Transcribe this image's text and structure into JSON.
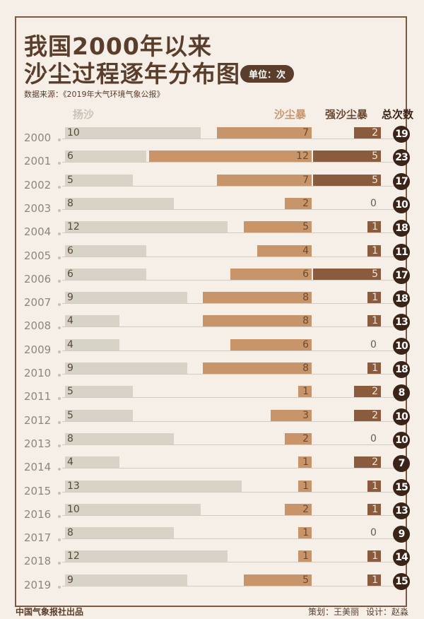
{
  "title_line1": "我国2000年以来",
  "title_line2": "沙尘过程逐年分布图",
  "unit": "单位：次",
  "source": "数据来源：《2019年大气环境气象公报》",
  "footer_left": "中国气象报社出品",
  "footer_right": "策划：王美丽  设计：赵淼",
  "colors": {
    "yangsha": "#d7d3c7",
    "dust_storm": "#c8956b",
    "strong_dust_storm": "#8a5b3d",
    "total": "#3a2317"
  },
  "chart_data": {
    "type": "bar",
    "categories": [
      "2000",
      "2001",
      "2002",
      "2003",
      "2004",
      "2005",
      "2006",
      "2007",
      "2008",
      "2009",
      "2010",
      "2011",
      "2012",
      "2013",
      "2014",
      "2015",
      "2016",
      "2017",
      "2018",
      "2019"
    ],
    "series": [
      {
        "name": "扬沙",
        "values": [
          10,
          6,
          5,
          8,
          12,
          6,
          6,
          9,
          4,
          4,
          9,
          5,
          5,
          8,
          4,
          13,
          10,
          8,
          12,
          9
        ]
      },
      {
        "name": "沙尘暴",
        "values": [
          7,
          12,
          7,
          2,
          5,
          4,
          6,
          8,
          8,
          6,
          8,
          1,
          3,
          2,
          1,
          1,
          2,
          1,
          1,
          5
        ]
      },
      {
        "name": "强沙尘暴",
        "values": [
          2,
          5,
          5,
          0,
          1,
          1,
          5,
          1,
          1,
          0,
          1,
          2,
          2,
          0,
          2,
          1,
          1,
          0,
          1,
          1
        ]
      },
      {
        "name": "总次数",
        "values": [
          19,
          23,
          17,
          10,
          18,
          11,
          17,
          18,
          13,
          10,
          18,
          8,
          10,
          10,
          7,
          15,
          13,
          9,
          14,
          15
        ]
      }
    ]
  }
}
